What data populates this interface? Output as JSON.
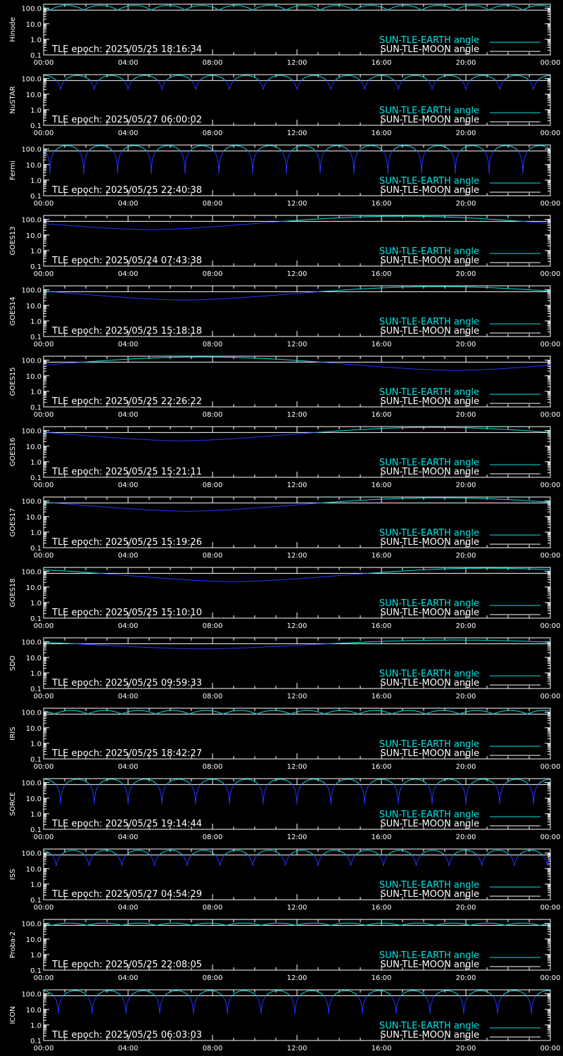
{
  "colors": {
    "background": "#000000",
    "axes": "#ffffff",
    "earth_line": "#00e5e5",
    "moon_line": "#ffffff",
    "dip_line": "#2233ff"
  },
  "legend": {
    "earth": "SUN-TLE-EARTH angle",
    "moon": "SUN-TLE-MOON angle"
  },
  "epoch_prefix": "TLE epoch: ",
  "chart_data": {
    "type": "line",
    "y_scale": "log",
    "ylim": [
      0.1,
      180
    ],
    "y_tick_labels": [
      "100.0",
      "10.0",
      "1.0",
      "0.1"
    ],
    "y_ticks": [
      100,
      10,
      1,
      0.1
    ],
    "xlim": [
      0,
      24
    ],
    "x_tick_labels": [
      "00:00",
      "04:00",
      "08:00",
      "12:00",
      "16:00",
      "20:00",
      "00:00"
    ],
    "x_ticks": [
      0,
      4,
      8,
      12,
      16,
      20,
      24
    ],
    "moon_angle": 75,
    "panels": [
      {
        "satellite": "Hinode",
        "epoch": "2025/05/25 18:16:34",
        "earth": {
          "kind": "leo",
          "period_hours": 1.6,
          "max": 150,
          "min": 75,
          "phase_hours": 0.3
        }
      },
      {
        "satellite": "NuSTAR",
        "epoch": "2025/05/27 06:00:02",
        "earth": {
          "kind": "leo",
          "period_hours": 1.6,
          "max": 160,
          "min": 20,
          "phase_hours": 0.8
        }
      },
      {
        "satellite": "Fermi",
        "epoch": "2025/05/25 22:40:38",
        "earth": {
          "kind": "leo",
          "period_hours": 1.6,
          "max": 165,
          "min": 2.5,
          "phase_hours": 0.3
        }
      },
      {
        "satellite": "GOES13",
        "epoch": "2025/05/24 07:43:38",
        "earth": {
          "kind": "geo",
          "peak_hour": 17,
          "max": 160,
          "min": 22
        }
      },
      {
        "satellite": "GOES14",
        "epoch": "2025/05/25 15:18:18",
        "earth": {
          "kind": "geo",
          "peak_hour": 18.7,
          "max": 160,
          "min": 22
        }
      },
      {
        "satellite": "GOES15",
        "epoch": "2025/05/25 22:26:22",
        "earth": {
          "kind": "geo",
          "peak_hour": 7.5,
          "max": 160,
          "min": 22
        }
      },
      {
        "satellite": "GOES16",
        "epoch": "2025/05/25 15:21:11",
        "earth": {
          "kind": "geo",
          "peak_hour": 18.5,
          "max": 160,
          "min": 22
        }
      },
      {
        "satellite": "GOES17",
        "epoch": "2025/05/25 15:19:26",
        "earth": {
          "kind": "geo",
          "peak_hour": 18.8,
          "max": 160,
          "min": 22
        }
      },
      {
        "satellite": "GOES18",
        "epoch": "2025/05/25 15:10:10",
        "earth": {
          "kind": "geo",
          "peak_hour": 21,
          "max": 160,
          "min": 22
        }
      },
      {
        "satellite": "SDO",
        "epoch": "2025/05/25 09:59:33",
        "earth": {
          "kind": "geo",
          "peak_hour": 19.5,
          "max": 130,
          "min": 35
        }
      },
      {
        "satellite": "IRIS",
        "epoch": "2025/05/25 18:42:27",
        "earth": {
          "kind": "leo",
          "period_hours": 1.6,
          "max": 130,
          "min": 75,
          "phase_hours": 0.5
        }
      },
      {
        "satellite": "SORCE",
        "epoch": "2025/05/25 19:14:44",
        "earth": {
          "kind": "leo",
          "period_hours": 1.6,
          "max": 165,
          "min": 4,
          "phase_hours": 0.8
        }
      },
      {
        "satellite": "ISS",
        "epoch": "2025/05/27 04:54:29",
        "earth": {
          "kind": "leo",
          "period_hours": 1.55,
          "max": 150,
          "min": 15,
          "phase_hours": 0.6
        }
      },
      {
        "satellite": "Proba-2",
        "epoch": "2025/05/25 22:08:05",
        "earth": {
          "kind": "leo",
          "period_hours": 1.65,
          "max": 105,
          "min": 75,
          "phase_hours": 0.4
        }
      },
      {
        "satellite": "ICON",
        "epoch": "2025/05/25 06:03:03",
        "earth": {
          "kind": "leo",
          "period_hours": 1.6,
          "max": 160,
          "min": 5,
          "phase_hours": 0.7
        }
      }
    ]
  }
}
